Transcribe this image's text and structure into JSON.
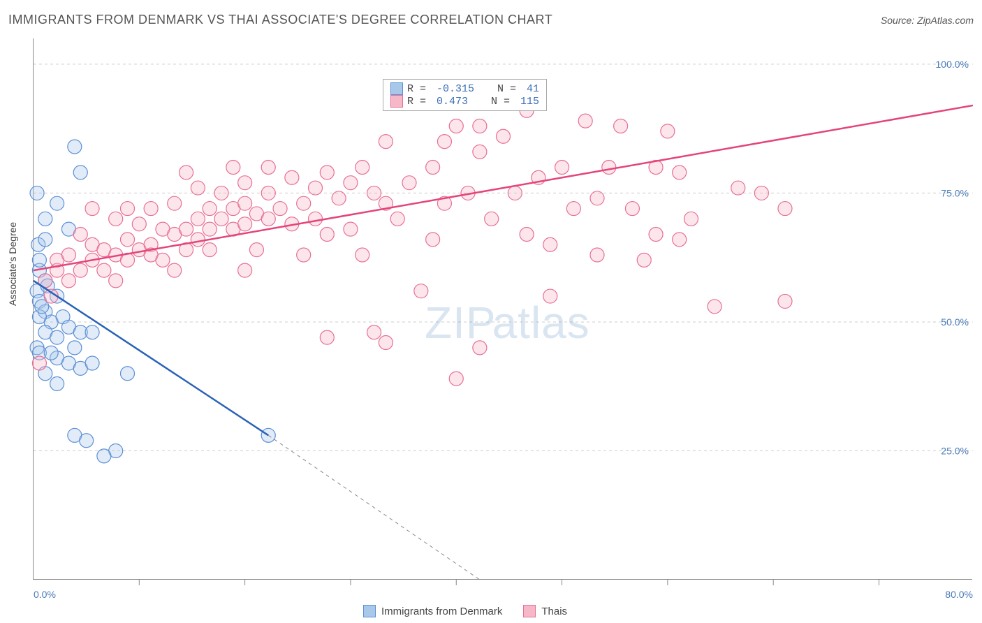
{
  "title": "IMMIGRANTS FROM DENMARK VS THAI ASSOCIATE'S DEGREE CORRELATION CHART",
  "source_label": "Source: ZipAtlas.com",
  "watermark": {
    "part1": "ZIP",
    "part2": "atlas"
  },
  "ylabel": "Associate's Degree",
  "chart": {
    "type": "scatter",
    "xlim": [
      0,
      80
    ],
    "ylim": [
      0,
      105
    ],
    "x_ticks": [
      0,
      80
    ],
    "x_tick_labels": [
      "0.0%",
      "80.0%"
    ],
    "x_minor_ticks": [
      9,
      18,
      27,
      36,
      45,
      54,
      63,
      72
    ],
    "y_ticks": [
      25,
      50,
      75,
      100
    ],
    "y_tick_labels": [
      "25.0%",
      "50.0%",
      "75.0%",
      "100.0%"
    ],
    "grid_color": "#cccccc",
    "axis_color": "#888888",
    "background_color": "#ffffff",
    "label_color": "#4a7ab8",
    "marker_radius": 10,
    "series": [
      {
        "name": "Immigrants from Denmark",
        "color_fill": "#a8c8ea",
        "color_stroke": "#5c8fd6",
        "R": "-0.315",
        "N": "41",
        "trend": {
          "x1": 0,
          "y1": 58,
          "x2": 20,
          "y2": 28,
          "ext_x1": 20,
          "ext_y1": 28,
          "ext_x2": 38,
          "ext_y2": 0,
          "color": "#2962b8",
          "width": 2.5
        },
        "points": [
          [
            0.3,
            75
          ],
          [
            0.5,
            60
          ],
          [
            0.4,
            65
          ],
          [
            3.5,
            84
          ],
          [
            4,
            79
          ],
          [
            1,
            70
          ],
          [
            1,
            66
          ],
          [
            0.5,
            62
          ],
          [
            1,
            58
          ],
          [
            2,
            73
          ],
          [
            3,
            68
          ],
          [
            0.3,
            56
          ],
          [
            0.5,
            54
          ],
          [
            1,
            52
          ],
          [
            2,
            55
          ],
          [
            1.5,
            50
          ],
          [
            0.5,
            51
          ],
          [
            2.5,
            51
          ],
          [
            3,
            49
          ],
          [
            1,
            48
          ],
          [
            2,
            47
          ],
          [
            3.5,
            45
          ],
          [
            0.3,
            45
          ],
          [
            4,
            48
          ],
          [
            5,
            48
          ],
          [
            2,
            43
          ],
          [
            3,
            42
          ],
          [
            4,
            41
          ],
          [
            1,
            40
          ],
          [
            5,
            42
          ],
          [
            8,
            40
          ],
          [
            2,
            38
          ],
          [
            3.5,
            28
          ],
          [
            4.5,
            27
          ],
          [
            7,
            25
          ],
          [
            6,
            24
          ],
          [
            0.5,
            44
          ],
          [
            1.5,
            44
          ],
          [
            20,
            28
          ],
          [
            0.7,
            53
          ],
          [
            1.2,
            57
          ]
        ]
      },
      {
        "name": "Thais",
        "color_fill": "#f6b8c8",
        "color_stroke": "#e86f93",
        "R": "0.473",
        "N": "115",
        "trend": {
          "x1": 0,
          "y1": 60,
          "x2": 80,
          "y2": 92,
          "color": "#e4447a",
          "width": 2.5
        },
        "points": [
          [
            0.5,
            42
          ],
          [
            1,
            58
          ],
          [
            1.5,
            55
          ],
          [
            2,
            60
          ],
          [
            2,
            62
          ],
          [
            3,
            63
          ],
          [
            3,
            58
          ],
          [
            4,
            60
          ],
          [
            4,
            67
          ],
          [
            5,
            62
          ],
          [
            5,
            65
          ],
          [
            5,
            72
          ],
          [
            6,
            64
          ],
          [
            6,
            60
          ],
          [
            7,
            63
          ],
          [
            7,
            70
          ],
          [
            7,
            58
          ],
          [
            8,
            66
          ],
          [
            8,
            62
          ],
          [
            8,
            72
          ],
          [
            9,
            64
          ],
          [
            9,
            69
          ],
          [
            10,
            65
          ],
          [
            10,
            63
          ],
          [
            10,
            72
          ],
          [
            11,
            68
          ],
          [
            11,
            62
          ],
          [
            12,
            67
          ],
          [
            12,
            73
          ],
          [
            12,
            60
          ],
          [
            13,
            68
          ],
          [
            13,
            64
          ],
          [
            13,
            79
          ],
          [
            14,
            70
          ],
          [
            14,
            66
          ],
          [
            14,
            76
          ],
          [
            15,
            72
          ],
          [
            15,
            68
          ],
          [
            15,
            64
          ],
          [
            16,
            70
          ],
          [
            16,
            75
          ],
          [
            17,
            72
          ],
          [
            17,
            80
          ],
          [
            17,
            68
          ],
          [
            18,
            69
          ],
          [
            18,
            73
          ],
          [
            18,
            77
          ],
          [
            19,
            71
          ],
          [
            19,
            64
          ],
          [
            20,
            75
          ],
          [
            20,
            70
          ],
          [
            20,
            80
          ],
          [
            21,
            72
          ],
          [
            22,
            69
          ],
          [
            22,
            78
          ],
          [
            23,
            73
          ],
          [
            23,
            63
          ],
          [
            24,
            76
          ],
          [
            24,
            70
          ],
          [
            25,
            79
          ],
          [
            25,
            67
          ],
          [
            25,
            47
          ],
          [
            26,
            74
          ],
          [
            27,
            68
          ],
          [
            27,
            77
          ],
          [
            28,
            80
          ],
          [
            28,
            63
          ],
          [
            29,
            48
          ],
          [
            29,
            75
          ],
          [
            30,
            85
          ],
          [
            30,
            73
          ],
          [
            30,
            46
          ],
          [
            31,
            70
          ],
          [
            32,
            93
          ],
          [
            32,
            77
          ],
          [
            33,
            56
          ],
          [
            34,
            80
          ],
          [
            34,
            66
          ],
          [
            35,
            73
          ],
          [
            36,
            88
          ],
          [
            36,
            39
          ],
          [
            37,
            75
          ],
          [
            38,
            83
          ],
          [
            38,
            45
          ],
          [
            39,
            70
          ],
          [
            40,
            86
          ],
          [
            41,
            75
          ],
          [
            42,
            67
          ],
          [
            42,
            91
          ],
          [
            43,
            78
          ],
          [
            44,
            65
          ],
          [
            45,
            80
          ],
          [
            46,
            72
          ],
          [
            47,
            89
          ],
          [
            48,
            74
          ],
          [
            49,
            80
          ],
          [
            50,
            88
          ],
          [
            51,
            72
          ],
          [
            52,
            62
          ],
          [
            53,
            80
          ],
          [
            54,
            87
          ],
          [
            55,
            79
          ],
          [
            56,
            70
          ],
          [
            58,
            53
          ],
          [
            60,
            76
          ],
          [
            62,
            75
          ],
          [
            64,
            54
          ],
          [
            44,
            55
          ],
          [
            55,
            66
          ],
          [
            48,
            63
          ],
          [
            53,
            67
          ],
          [
            35,
            85
          ],
          [
            38,
            88
          ],
          [
            64,
            72
          ],
          [
            18,
            60
          ]
        ]
      }
    ]
  },
  "legend_bottom": [
    {
      "label": "Immigrants from Denmark",
      "fill": "#a8c8ea",
      "stroke": "#5c8fd6"
    },
    {
      "label": "Thais",
      "fill": "#f6b8c8",
      "stroke": "#e86f93"
    }
  ]
}
